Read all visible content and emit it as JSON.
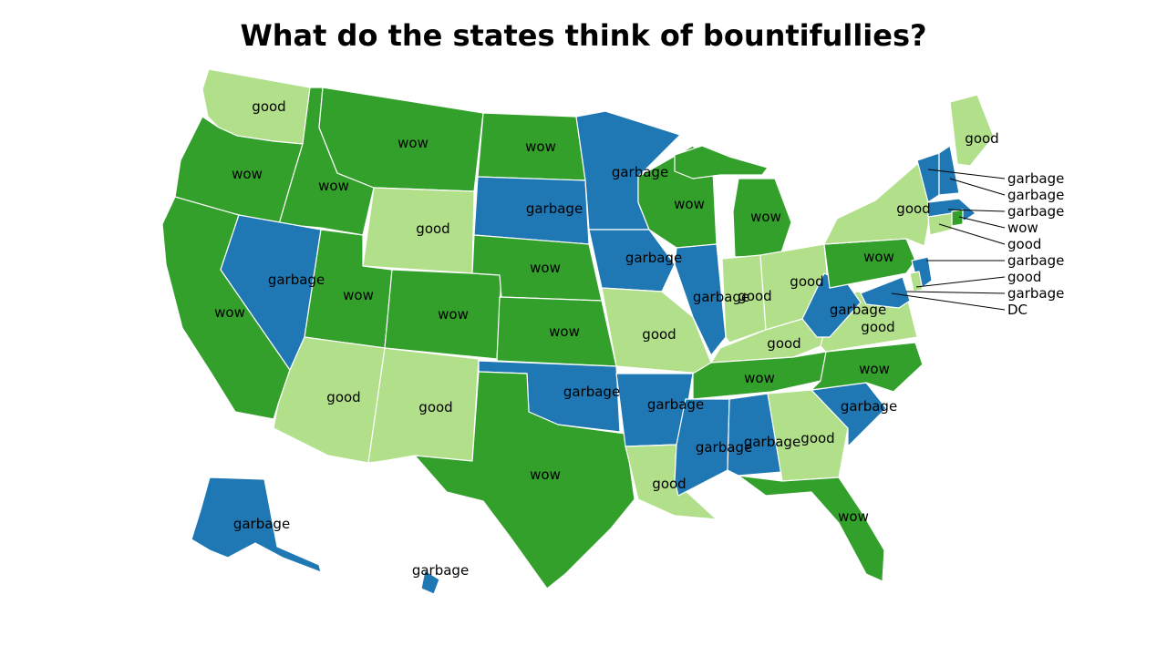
{
  "title": "What do the states think of bountifullies?",
  "colors": {
    "wow": "#33a02c",
    "good": "#b2df8a",
    "garbage": "#1f78b4"
  },
  "states": [
    {
      "id": "WA",
      "value": "good"
    },
    {
      "id": "OR",
      "value": "wow"
    },
    {
      "id": "CA",
      "value": "wow"
    },
    {
      "id": "ID",
      "value": "wow"
    },
    {
      "id": "NV",
      "value": "garbage"
    },
    {
      "id": "MT",
      "value": "wow"
    },
    {
      "id": "WY",
      "value": "good"
    },
    {
      "id": "UT",
      "value": "wow"
    },
    {
      "id": "AZ",
      "value": "good"
    },
    {
      "id": "CO",
      "value": "wow"
    },
    {
      "id": "NM",
      "value": "good"
    },
    {
      "id": "ND",
      "value": "wow"
    },
    {
      "id": "SD",
      "value": "garbage"
    },
    {
      "id": "NE",
      "value": "wow"
    },
    {
      "id": "KS",
      "value": "wow"
    },
    {
      "id": "OK",
      "value": "garbage"
    },
    {
      "id": "TX",
      "value": "wow"
    },
    {
      "id": "MN",
      "value": "garbage"
    },
    {
      "id": "IA",
      "value": "garbage"
    },
    {
      "id": "MO",
      "value": "good"
    },
    {
      "id": "AR",
      "value": "garbage"
    },
    {
      "id": "LA",
      "value": "good"
    },
    {
      "id": "WI",
      "value": "wow"
    },
    {
      "id": "IL",
      "value": "garbage"
    },
    {
      "id": "MI",
      "value": "wow"
    },
    {
      "id": "IN",
      "value": "good"
    },
    {
      "id": "OH",
      "value": "good"
    },
    {
      "id": "KY",
      "value": "good"
    },
    {
      "id": "TN",
      "value": "wow"
    },
    {
      "id": "MS",
      "value": "garbage"
    },
    {
      "id": "AL",
      "value": "garbage"
    },
    {
      "id": "GA",
      "value": "good"
    },
    {
      "id": "FL",
      "value": "wow"
    },
    {
      "id": "SC",
      "value": "garbage"
    },
    {
      "id": "NC",
      "value": "wow"
    },
    {
      "id": "VA",
      "value": "good"
    },
    {
      "id": "WV",
      "value": "garbage"
    },
    {
      "id": "PA",
      "value": "wow"
    },
    {
      "id": "NY",
      "value": "good"
    },
    {
      "id": "ME",
      "value": "good"
    },
    {
      "id": "VT",
      "value": "garbage"
    },
    {
      "id": "NH",
      "value": "garbage"
    },
    {
      "id": "MA",
      "value": "garbage"
    },
    {
      "id": "RI",
      "value": "wow"
    },
    {
      "id": "CT",
      "value": "good"
    },
    {
      "id": "NJ",
      "value": "garbage"
    },
    {
      "id": "DE",
      "value": "good"
    },
    {
      "id": "MD",
      "value": "garbage"
    },
    {
      "id": "DC",
      "value": "DC"
    },
    {
      "id": "AK",
      "value": "garbage"
    },
    {
      "id": "HI",
      "value": "garbage"
    }
  ],
  "callouts": [
    "garbage",
    "garbage",
    "garbage",
    "wow",
    "good",
    "garbage",
    "good",
    "garbage",
    "DC"
  ]
}
